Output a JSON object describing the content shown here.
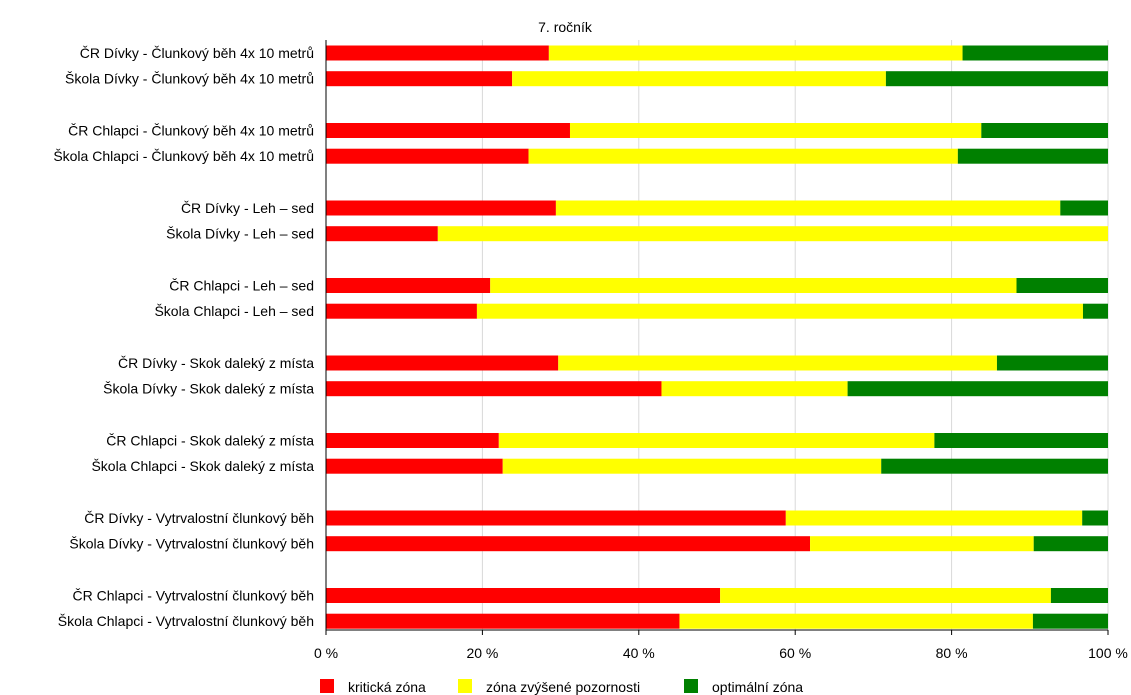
{
  "chart_data": {
    "type": "bar",
    "orientation": "horizontal",
    "stacked": true,
    "title": "7. ročník",
    "xlabel": "",
    "ylabel": "",
    "xlim": [
      0,
      100
    ],
    "xticks": [
      "0 %",
      "20 %",
      "40 %",
      "60 %",
      "80 %",
      "100 %"
    ],
    "grid": true,
    "legend_position": "bottom",
    "categories": [
      "ČR Dívky - Člunkový běh 4x 10 metrů",
      "Škola Dívky - Člunkový běh 4x 10 metrů",
      "ČR Chlapci - Člunkový běh 4x 10 metrů",
      "Škola Chlapci - Člunkový běh 4x 10 metrů",
      "ČR Dívky - Leh – sed",
      "Škola Dívky - Leh – sed",
      "ČR Chlapci - Leh – sed",
      "Škola Chlapci - Leh – sed",
      "ČR Dívky - Skok daleký z místa",
      "Škola Dívky - Skok daleký z místa",
      "ČR Chlapci - Skok daleký z místa",
      "Škola Chlapci - Skok daleký z místa",
      "ČR Dívky - Vytrvalostní člunkový běh",
      "Škola Dívky - Vytrvalostní člunkový běh",
      "ČR Chlapci - Vytrvalostní člunkový běh",
      "Škola Chlapci - Vytrvalostní člunkový běh"
    ],
    "series": [
      {
        "name": "kritická zóna",
        "color": "#ff0000",
        "values": [
          28.5,
          23.8,
          31.2,
          25.9,
          29.4,
          14.3,
          21.0,
          19.3,
          29.7,
          42.9,
          22.1,
          22.6,
          58.8,
          61.9,
          50.4,
          45.2
        ]
      },
      {
        "name": "zóna zvýšené pozornosti",
        "color": "#ffff00",
        "values": [
          52.9,
          47.8,
          52.6,
          54.9,
          64.5,
          85.7,
          67.3,
          77.5,
          56.1,
          23.8,
          55.7,
          48.4,
          37.9,
          28.6,
          42.3,
          45.2
        ]
      },
      {
        "name": "optimální zóna",
        "color": "#008000",
        "values": [
          18.6,
          28.4,
          16.2,
          19.2,
          6.1,
          0.0,
          11.7,
          3.2,
          14.2,
          33.3,
          22.2,
          29.0,
          3.3,
          9.5,
          7.3,
          9.6
        ]
      }
    ]
  }
}
